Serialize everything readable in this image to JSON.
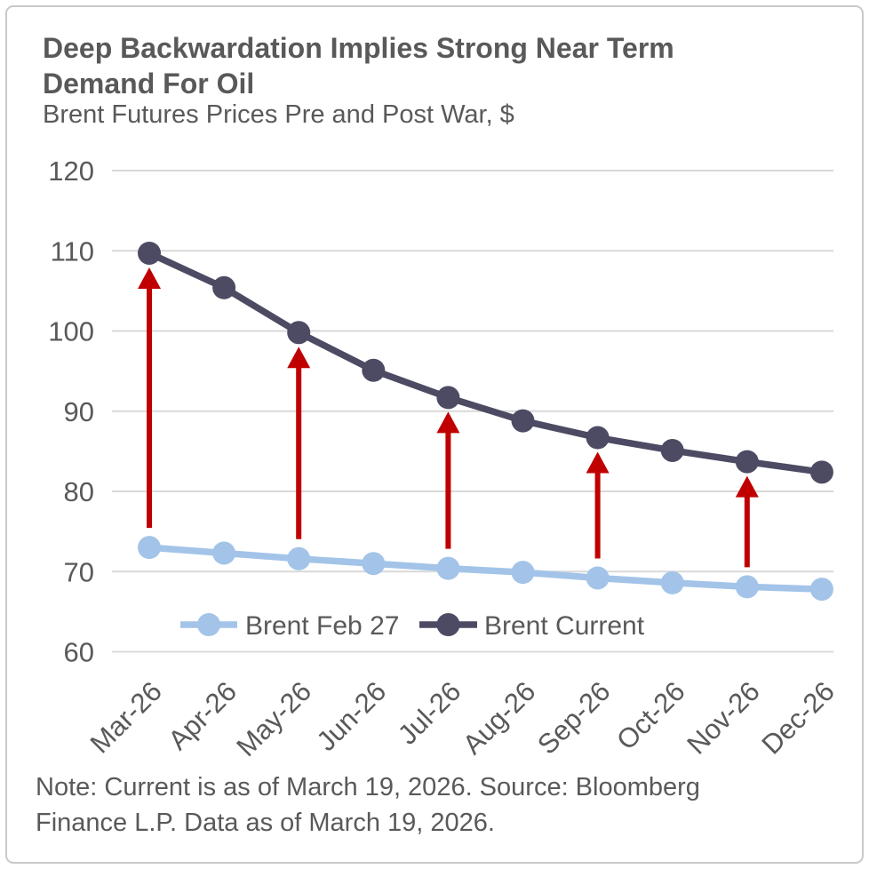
{
  "header": {
    "title_line1": "Deep Backwardation Implies Strong Near Term",
    "title_line2": "Demand For Oil",
    "subtitle": "Brent Futures Prices Pre and Post War, $"
  },
  "chart_data": {
    "type": "line",
    "title": "Deep Backwardation Implies Strong Near Term Demand For Oil",
    "subtitle": "Brent Futures Prices Pre and Post War, $",
    "categories": [
      "Mar-26",
      "Apr-26",
      "May-26",
      "Jun-26",
      "Jul-26",
      "Aug-26",
      "Sep-26",
      "Oct-26",
      "Nov-26",
      "Dec-26"
    ],
    "series": [
      {
        "name": "Brent Feb 27",
        "color": "#A3C4E8",
        "values": [
          73.0,
          72.3,
          71.6,
          71.0,
          70.4,
          69.9,
          69.2,
          68.6,
          68.1,
          67.8
        ]
      },
      {
        "name": "Brent Current",
        "color": "#4C4B63",
        "values": [
          109.7,
          105.4,
          99.8,
          95.1,
          91.7,
          88.8,
          86.7,
          85.1,
          83.7,
          82.4
        ]
      }
    ],
    "xlabel": "",
    "ylabel": "",
    "ylim": [
      60,
      120
    ],
    "yticks": [
      120,
      110,
      100,
      90,
      80,
      70,
      60
    ],
    "grid": "horizontal",
    "gridline_color": "#D9D9D9",
    "legend_position": "bottom-inside",
    "annotations": {
      "up_arrows_at_categories": [
        "Mar-26",
        "May-26",
        "Jul-26",
        "Sep-26",
        "Nov-26"
      ],
      "arrow_direction": "up",
      "arrow_from_series": "Brent Feb 27",
      "arrow_to_series": "Brent Current",
      "arrow_color": "#C00000"
    }
  },
  "note": {
    "line1": "Note: Current is as of March 19, 2026. Source: Bloomberg",
    "line2": "Finance L.P. Data as of March 19, 2026."
  },
  "colors": {
    "text_gray": "#595959",
    "grid": "#D9D9D9",
    "border": "#C9C9C9",
    "arrow_red": "#C00000",
    "series_light_blue": "#A3C4E8",
    "series_dark_slate": "#4C4B63"
  }
}
